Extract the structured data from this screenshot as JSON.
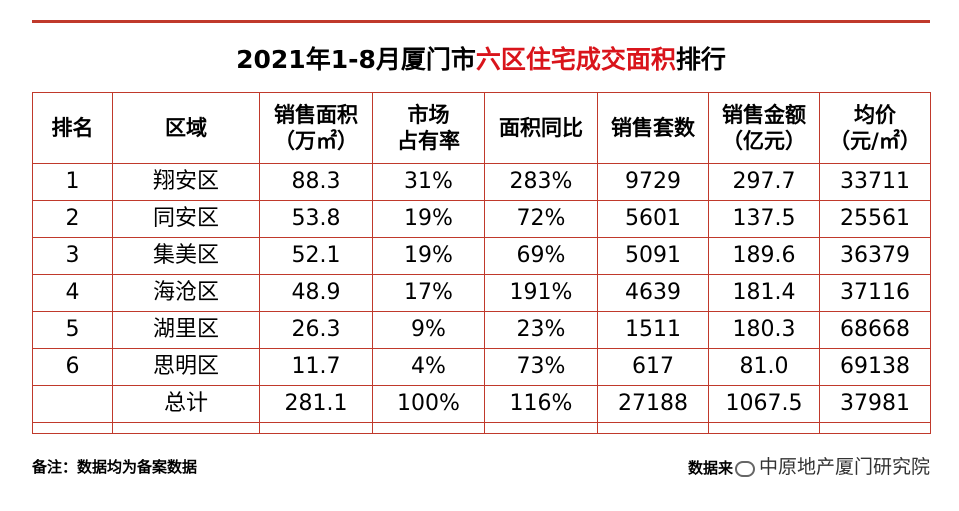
{
  "title": {
    "prefix": "2021年1-8月厦门市",
    "highlight": "六区住宅成交面积",
    "suffix": "排行"
  },
  "headers": [
    {
      "line1": "排名",
      "line2": ""
    },
    {
      "line1": "区域",
      "line2": ""
    },
    {
      "line1": "销售面积",
      "line2": "（万㎡）"
    },
    {
      "line1": "市场",
      "line2": "占有率"
    },
    {
      "line1": "面积同比",
      "line2": ""
    },
    {
      "line1": "销售套数",
      "line2": ""
    },
    {
      "line1": "销售金额",
      "line2": "（亿元）"
    },
    {
      "line1": "均价",
      "line2": "（元/㎡）"
    }
  ],
  "rows": [
    [
      "1",
      "翔安区",
      "88.3",
      "31%",
      "283%",
      "9729",
      "297.7",
      "33711"
    ],
    [
      "2",
      "同安区",
      "53.8",
      "19%",
      "72%",
      "5601",
      "137.5",
      "25561"
    ],
    [
      "3",
      "集美区",
      "52.1",
      "19%",
      "69%",
      "5091",
      "189.6",
      "36379"
    ],
    [
      "4",
      "海沧区",
      "48.9",
      "17%",
      "191%",
      "4639",
      "181.4",
      "37116"
    ],
    [
      "5",
      "湖里区",
      "26.3",
      "9%",
      "23%",
      "1511",
      "180.3",
      "68668"
    ],
    [
      "6",
      "思明区",
      "11.7",
      "4%",
      "73%",
      "617",
      "81.0",
      "69138"
    ],
    [
      "",
      "总计",
      "281.1",
      "100%",
      "116%",
      "27188",
      "1067.5",
      "37981"
    ]
  ],
  "footer": {
    "note": "备注：数据均为备案数据",
    "source_prefix": "数据来",
    "brand": "中原地产厦门研究院"
  },
  "colors": {
    "accent": "#d9141b",
    "border": "#c0392b"
  }
}
